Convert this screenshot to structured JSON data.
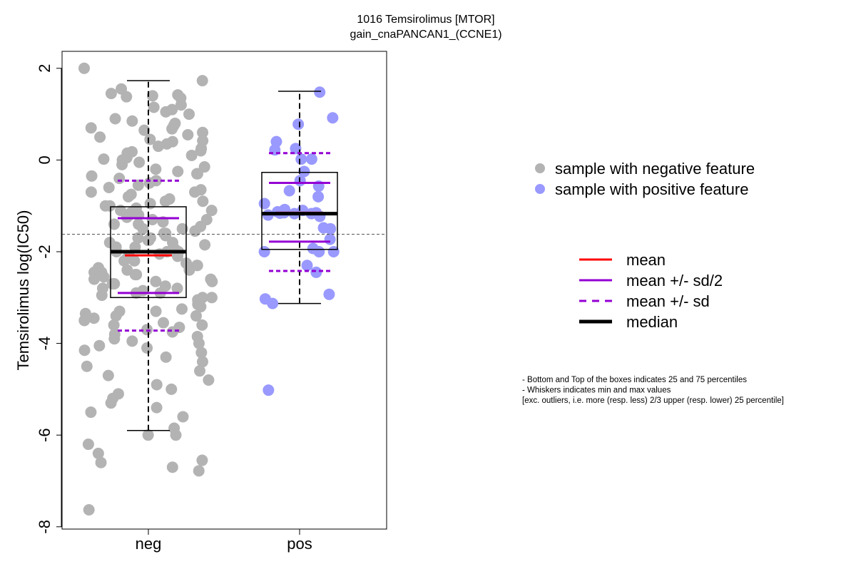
{
  "chart_data": {
    "type": "box",
    "title": "1016 Temsirolimus [MTOR]",
    "subtitle": "gain_cnaPANCAN1_(CCNE1)",
    "ylabel": "Temsirolimus log(IC50)",
    "categories": [
      "neg",
      "pos"
    ],
    "ylim": [
      -8.05,
      2.37
    ],
    "yticks": [
      2,
      0,
      -2,
      -4,
      -6,
      -8
    ],
    "reference_line": -1.62,
    "groups": [
      {
        "name": "sample with negative feature",
        "color": "#b3b3b3",
        "q1": -3.0,
        "median": -2.0,
        "q3": -1.02,
        "whisker_low": -5.9,
        "whisker_high": 1.73,
        "mean": -2.08,
        "mean_plus_half_sd": -1.27,
        "mean_minus_half_sd": -2.9,
        "mean_plus_sd": -0.45,
        "mean_minus_sd": -3.72,
        "points": [
          2.0,
          1.73,
          1.55,
          1.45,
          1.42,
          1.4,
          1.38,
          1.35,
          1.2,
          1.15,
          1.1,
          1.05,
          1.0,
          0.9,
          0.85,
          0.8,
          0.75,
          0.7,
          0.68,
          0.65,
          0.6,
          0.55,
          0.5,
          0.45,
          0.42,
          0.4,
          0.35,
          0.3,
          0.25,
          0.2,
          0.18,
          0.15,
          0.1,
          0.05,
          0.02,
          0.0,
          -0.05,
          -0.1,
          -0.15,
          -0.2,
          -0.25,
          -0.3,
          -0.35,
          -0.4,
          -0.45,
          -0.5,
          -0.55,
          -0.6,
          -0.65,
          -0.7,
          -0.75,
          -0.8,
          -0.85,
          -0.9,
          -0.95,
          -1.0,
          -1.05,
          -1.1,
          -1.15,
          -1.2,
          -1.25,
          -1.3,
          -1.35,
          -1.4,
          -1.45,
          -1.5,
          -1.55,
          -1.6,
          -1.65,
          -1.7,
          -1.75,
          -1.8,
          -1.85,
          -1.9,
          -1.95,
          -2.0,
          -2.05,
          -2.1,
          -2.15,
          -2.2,
          -2.25,
          -2.3,
          -2.35,
          -2.4,
          -2.45,
          -2.5,
          -2.55,
          -2.6,
          -2.65,
          -2.7,
          -2.75,
          -2.8,
          -2.85,
          -2.9,
          -2.95,
          -3.0,
          -3.05,
          -3.1,
          -3.15,
          -3.2,
          -3.25,
          -3.3,
          -3.35,
          -3.4,
          -3.45,
          -3.5,
          -3.55,
          -3.6,
          -3.65,
          -3.7,
          -3.75,
          -3.8,
          -3.85,
          -3.9,
          -3.95,
          -4.0,
          -4.05,
          -4.1,
          -4.15,
          -4.2,
          -4.3,
          -4.4,
          -4.5,
          -4.6,
          -4.7,
          -4.8,
          -4.9,
          -5.0,
          -5.1,
          -5.2,
          -5.3,
          -5.4,
          -5.5,
          -5.6,
          -5.85,
          -6.0,
          -6.0,
          -6.2,
          -6.4,
          -6.55,
          -6.6,
          -6.7,
          -6.78,
          -7.63,
          -0.3,
          -0.7,
          -1.1,
          -1.3,
          -1.5,
          -1.7,
          -1.9,
          -2.1,
          -2.3,
          -2.5,
          -2.7,
          -2.9,
          -3.1,
          -3.3,
          -1.2,
          -1.6,
          -2.0,
          -2.4,
          -2.8,
          -1.4,
          -1.8,
          -2.2,
          -2.6,
          -3.0,
          -0.9,
          -3.4,
          -3.6,
          -1.0,
          -2.0,
          -2.45,
          -1.75,
          -2.65
        ]
      },
      {
        "name": "sample with positive feature",
        "color": "#9999ff",
        "q1": -1.95,
        "median": -1.17,
        "q3": -0.27,
        "whisker_low": -3.13,
        "whisker_high": 1.5,
        "mean": -1.15,
        "mean_plus_half_sd": -0.5,
        "mean_minus_half_sd": -1.78,
        "mean_plus_sd": 0.15,
        "mean_minus_sd": -2.42,
        "points": [
          1.48,
          0.92,
          0.78,
          0.4,
          0.25,
          0.22,
          0.02,
          0.02,
          -0.25,
          -0.45,
          -0.57,
          -0.67,
          -0.8,
          -0.95,
          -1.08,
          -1.1,
          -1.13,
          -1.15,
          -1.15,
          -1.16,
          -1.17,
          -1.17,
          -1.2,
          -1.23,
          -1.48,
          -1.5,
          -1.73,
          -1.93,
          -2.0,
          -2.0,
          -2.0,
          -2.3,
          -2.45,
          -2.93,
          -3.03,
          -3.13,
          -5.02
        ]
      }
    ],
    "line_legend": [
      {
        "label": "mean",
        "color": "#ff0000",
        "style": "solid",
        "width": 3
      },
      {
        "label": "mean +/- sd/2",
        "color": "#9400d3",
        "style": "solid",
        "width": 3
      },
      {
        "label": "mean +/- sd",
        "color": "#9400d3",
        "style": "dashed",
        "width": 3
      },
      {
        "label": "median",
        "color": "#000000",
        "style": "solid",
        "width": 5
      }
    ],
    "notes": [
      "- Bottom and Top of the boxes indicates 25 and 75 percentiles",
      "- Whiskers indicates min and max values",
      "[exc. outliers, i.e. more (resp. less) 2/3 upper (resp. lower) 25 percentile]"
    ]
  }
}
